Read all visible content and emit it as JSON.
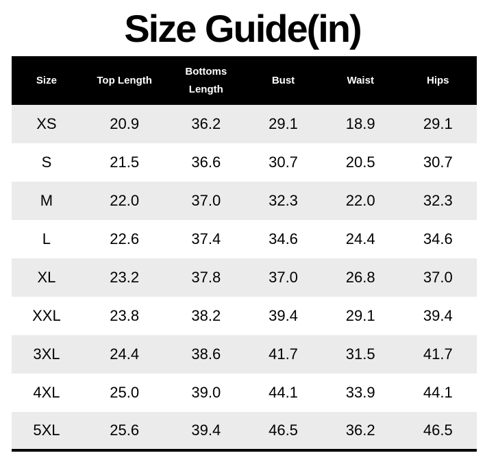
{
  "title": "Size Guide(in)",
  "table": {
    "columns": [
      "Size",
      "Top Length",
      "Bottoms Length",
      "Bust",
      "Waist",
      "Hips"
    ],
    "rows": [
      [
        "XS",
        "20.9",
        "36.2",
        "29.1",
        "18.9",
        "29.1"
      ],
      [
        "S",
        "21.5",
        "36.6",
        "30.7",
        "20.5",
        "30.7"
      ],
      [
        "M",
        "22.0",
        "37.0",
        "32.3",
        "22.0",
        "32.3"
      ],
      [
        "L",
        "22.6",
        "37.4",
        "34.6",
        "24.4",
        "34.6"
      ],
      [
        "XL",
        "23.2",
        "37.8",
        "37.0",
        "26.8",
        "37.0"
      ],
      [
        "XXL",
        "23.8",
        "38.2",
        "39.4",
        "29.1",
        "39.4"
      ],
      [
        "3XL",
        "24.4",
        "38.6",
        "41.7",
        "31.5",
        "41.7"
      ],
      [
        "4XL",
        "25.0",
        "39.0",
        "44.1",
        "33.9",
        "44.1"
      ],
      [
        "5XL",
        "25.6",
        "39.4",
        "46.5",
        "36.2",
        "46.5"
      ]
    ]
  },
  "colors": {
    "header_bg": "#000000",
    "header_text": "#ffffff",
    "alt_row_bg": "#ebebeb",
    "body_text": "#000000",
    "title_text": "#000000"
  }
}
